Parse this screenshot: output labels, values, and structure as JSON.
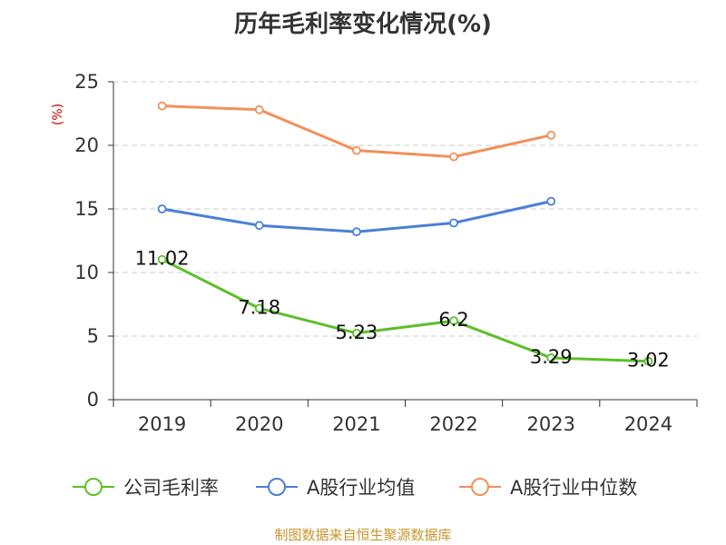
{
  "chart_data": {
    "type": "line",
    "title": "历年毛利率变化情况(%)",
    "ylabel": "(%)",
    "xlabel": "",
    "categories": [
      "2019",
      "2020",
      "2021",
      "2022",
      "2023",
      "2024"
    ],
    "ylim": [
      0,
      25
    ],
    "yticks": [
      0,
      5,
      10,
      15,
      20,
      25
    ],
    "grid": "horizontal-dashed",
    "legend_position": "bottom",
    "series": [
      {
        "name": "公司毛利率",
        "color": "#5cbf2a",
        "values": [
          11.02,
          7.18,
          5.23,
          6.2,
          3.29,
          3.02
        ],
        "labels": [
          "11.02",
          "7.18",
          "5.23",
          "6.2",
          "3.29",
          "3.02"
        ]
      },
      {
        "name": "A股行业均值",
        "color": "#4a7fd9",
        "values": [
          15.0,
          13.7,
          13.2,
          13.9,
          15.6,
          null
        ]
      },
      {
        "name": "A股行业中位数",
        "color": "#f2905a",
        "values": [
          23.1,
          22.8,
          19.6,
          19.1,
          20.8,
          null
        ]
      }
    ]
  },
  "footer": {
    "source": "制图数据来自恒生聚源数据库"
  },
  "colors": {
    "ylabel": "#cc0000",
    "axis": "#333333",
    "grid": "#cccccc",
    "source": "#c8962e"
  }
}
